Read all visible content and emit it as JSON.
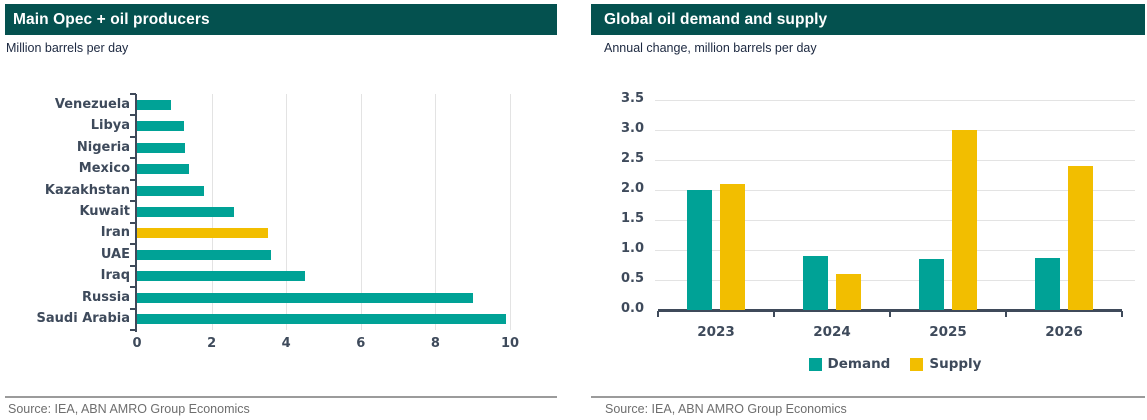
{
  "colors": {
    "banner": "#04514F",
    "teal": "#00A296",
    "yellow": "#F2BE00",
    "axis": "#3F4A5A",
    "label_text": "#3E4A5B",
    "gridline": "#E3E3E3",
    "subtitle_text": "#1C2840",
    "source_text": "#6E6E6E",
    "source_line": "#9B9B9B"
  },
  "left_panel": {
    "title": "Main Opec + oil producers",
    "subtitle": "Million barrels per day",
    "source": "Source: IEA, ABN AMRO Group Economics"
  },
  "right_panel": {
    "title": "Global oil demand and supply",
    "subtitle": "Annual change, million barrels per day",
    "source": "Source: IEA, ABN AMRO Group Economics"
  },
  "chart_data": [
    {
      "type": "bar",
      "orientation": "horizontal",
      "title": "Main Opec + oil producers",
      "subtitle": "Million barrels per day",
      "categories": [
        "Venezuela",
        "Libya",
        "Nigeria",
        "Mexico",
        "Kazakhstan",
        "Kuwait",
        "Iran",
        "UAE",
        "Iraq",
        "Russia",
        "Saudi Arabia"
      ],
      "values": [
        0.9,
        1.25,
        1.3,
        1.4,
        1.8,
        2.6,
        3.5,
        3.6,
        4.5,
        9.0,
        9.9
      ],
      "bar_colors": [
        "teal",
        "teal",
        "teal",
        "teal",
        "teal",
        "teal",
        "yellow",
        "teal",
        "teal",
        "teal",
        "teal"
      ],
      "xlim": [
        0,
        10
      ],
      "xticks": [
        0,
        2,
        4,
        6,
        8,
        10
      ],
      "grid": "vertical",
      "legend": "none",
      "source": "Source: IEA, ABN AMRO Group Economics"
    },
    {
      "type": "bar",
      "orientation": "vertical",
      "title": "Global oil demand and supply",
      "subtitle": "Annual change, million barrels per day",
      "categories": [
        "2023",
        "2024",
        "2025",
        "2026"
      ],
      "series": [
        {
          "name": "Demand",
          "color_key": "teal",
          "values": [
            2.0,
            0.9,
            0.85,
            0.87
          ]
        },
        {
          "name": "Supply",
          "color_key": "yellow",
          "values": [
            2.1,
            0.6,
            3.0,
            2.4
          ]
        }
      ],
      "ylim": [
        0,
        3.5
      ],
      "ytick_labels": [
        "0.0",
        "0.5",
        "1.0",
        "1.5",
        "2.0",
        "2.5",
        "3.0",
        "3.5"
      ],
      "grid": "horizontal",
      "legend_position": "bottom",
      "source": "Source: IEA, ABN AMRO Group Economics"
    }
  ]
}
